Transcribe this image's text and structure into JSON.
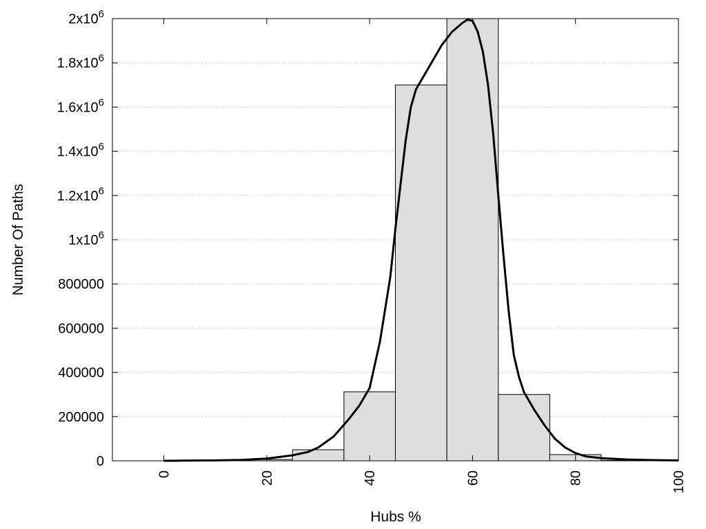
{
  "chart_data": {
    "type": "bar",
    "title": "",
    "xlabel": "Hubs %",
    "ylabel": "Number Of Paths",
    "xlim": [
      -10,
      100
    ],
    "ylim": [
      0,
      2000000
    ],
    "grid": true,
    "x_ticks": [
      {
        "value": 0,
        "label": "0"
      },
      {
        "value": 20,
        "label": "20"
      },
      {
        "value": 40,
        "label": "40"
      },
      {
        "value": 60,
        "label": "60"
      },
      {
        "value": 80,
        "label": "80"
      },
      {
        "value": 100,
        "label": "100"
      }
    ],
    "y_ticks": [
      {
        "value": 0,
        "base": "0",
        "exp": ""
      },
      {
        "value": 200000,
        "base": "200000",
        "exp": ""
      },
      {
        "value": 400000,
        "base": "400000",
        "exp": ""
      },
      {
        "value": 600000,
        "base": "600000",
        "exp": ""
      },
      {
        "value": 800000,
        "base": "800000",
        "exp": ""
      },
      {
        "value": 1000000,
        "base": "1x10",
        "exp": "6"
      },
      {
        "value": 1200000,
        "base": "1.2x10",
        "exp": "6"
      },
      {
        "value": 1400000,
        "base": "1.4x10",
        "exp": "6"
      },
      {
        "value": 1600000,
        "base": "1.6x10",
        "exp": "6"
      },
      {
        "value": 1800000,
        "base": "1.8x10",
        "exp": "6"
      },
      {
        "value": 2000000,
        "base": "2x10",
        "exp": "6"
      }
    ],
    "bars": [
      {
        "x0": -5,
        "x1": 5,
        "value": 0
      },
      {
        "x0": 5,
        "x1": 15,
        "value": 1500
      },
      {
        "x0": 15,
        "x1": 25,
        "value": 6000
      },
      {
        "x0": 25,
        "x1": 35,
        "value": 50000
      },
      {
        "x0": 35,
        "x1": 45,
        "value": 312000
      },
      {
        "x0": 45,
        "x1": 55,
        "value": 1700000
      },
      {
        "x0": 55,
        "x1": 65,
        "value": 2000000
      },
      {
        "x0": 65,
        "x1": 75,
        "value": 300000
      },
      {
        "x0": 75,
        "x1": 85,
        "value": 28000
      },
      {
        "x0": 85,
        "x1": 95,
        "value": 2000
      }
    ],
    "curve": {
      "x": [
        0,
        5,
        10,
        15,
        20,
        25,
        28,
        30,
        33,
        36,
        38,
        40,
        42,
        44,
        45,
        46,
        47,
        48,
        49,
        50,
        52,
        54,
        56,
        58,
        59,
        60,
        61,
        62,
        63,
        64,
        65,
        66,
        67,
        68,
        69,
        70,
        72,
        74,
        76,
        78,
        80,
        82,
        85,
        90,
        95,
        100
      ],
      "y": [
        0,
        1000,
        2000,
        4000,
        10000,
        25000,
        40000,
        60000,
        110000,
        190000,
        250000,
        330000,
        540000,
        830000,
        1050000,
        1250000,
        1450000,
        1600000,
        1680000,
        1720000,
        1800000,
        1880000,
        1940000,
        1980000,
        1995000,
        1990000,
        1940000,
        1850000,
        1700000,
        1480000,
        1200000,
        930000,
        680000,
        480000,
        380000,
        310000,
        230000,
        160000,
        100000,
        60000,
        35000,
        20000,
        12000,
        6000,
        3000,
        2000
      ]
    }
  }
}
